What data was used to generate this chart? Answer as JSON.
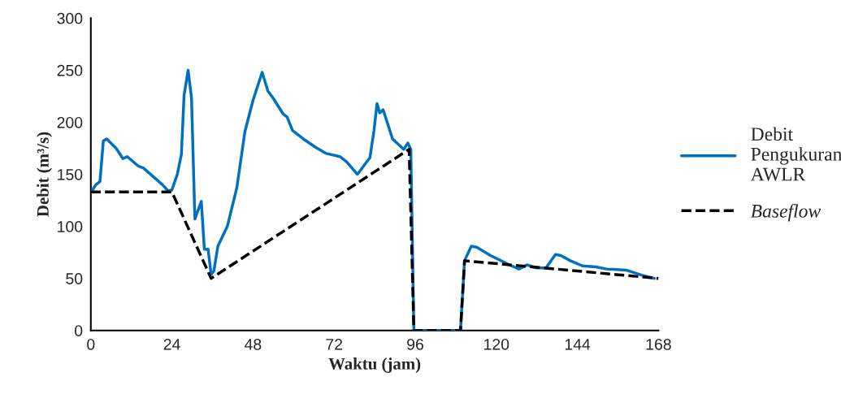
{
  "chart_data": {
    "type": "line",
    "xlabel": "Waktu (jam)",
    "ylabel": "Debit (m³/s)",
    "xlim": [
      0,
      168
    ],
    "xticks": [
      0,
      24,
      48,
      72,
      96,
      120,
      144,
      168
    ],
    "ylim": [
      0,
      300
    ],
    "yticks": [
      0,
      50,
      100,
      150,
      200,
      250,
      300
    ],
    "grid": false,
    "legend": "right",
    "marker": "none",
    "series": [
      {
        "name": "Debit Pengukuran AWLR",
        "color": "#0070c0",
        "line_style": "solid",
        "x": [
          0.3,
          1.5,
          2.7,
          3.7,
          4.7,
          7.5,
          9.5,
          10.8,
          14,
          15.6,
          21.2,
          22.9,
          24,
          25.6,
          26.8,
          27.6,
          28.8,
          29.8,
          30.8,
          32.7,
          33.6,
          34.7,
          35.6,
          36.4,
          37.6,
          40.4,
          43.2,
          45.6,
          48,
          50.7,
          52.4,
          54,
          56.9,
          58.1,
          59.7,
          62.9,
          66.5,
          69.7,
          73.7,
          75.7,
          78.9,
          82.6,
          83.8,
          84.7,
          85.5,
          86.5,
          89.3,
          92.6,
          93.8,
          94.7,
          95.6,
          109.4,
          110.6,
          112.6,
          114.2,
          118.3,
          123.9,
          126.7,
          129.1,
          131.9,
          134.7,
          137.5,
          139.1,
          141.9,
          145.5,
          149.5,
          152.7,
          158.4,
          163.2,
          166.8
        ],
        "values": [
          134,
          140,
          143,
          182,
          184,
          175,
          165,
          167,
          158,
          156,
          140,
          134,
          135,
          150,
          169,
          226,
          250,
          223,
          107,
          124,
          78,
          78,
          54,
          57,
          81,
          100,
          137,
          191,
          221,
          248,
          230,
          223,
          208,
          205,
          192,
          184,
          176,
          170,
          167,
          162,
          150,
          166,
          192,
          218,
          209,
          212,
          184,
          174,
          180,
          174,
          0,
          0,
          67,
          81,
          80,
          72,
          63,
          59,
          63,
          60,
          60,
          73,
          72,
          67,
          62,
          61,
          59,
          58,
          53,
          50
        ]
      },
      {
        "name": "Baseflow",
        "color": "#000000",
        "line_style": "dashed",
        "x": [
          0,
          24,
          35.6,
          94.2,
          95.6,
          109.4,
          110.6,
          168
        ],
        "values": [
          133,
          133,
          50,
          174,
          0,
          0,
          67,
          50
        ]
      }
    ]
  }
}
